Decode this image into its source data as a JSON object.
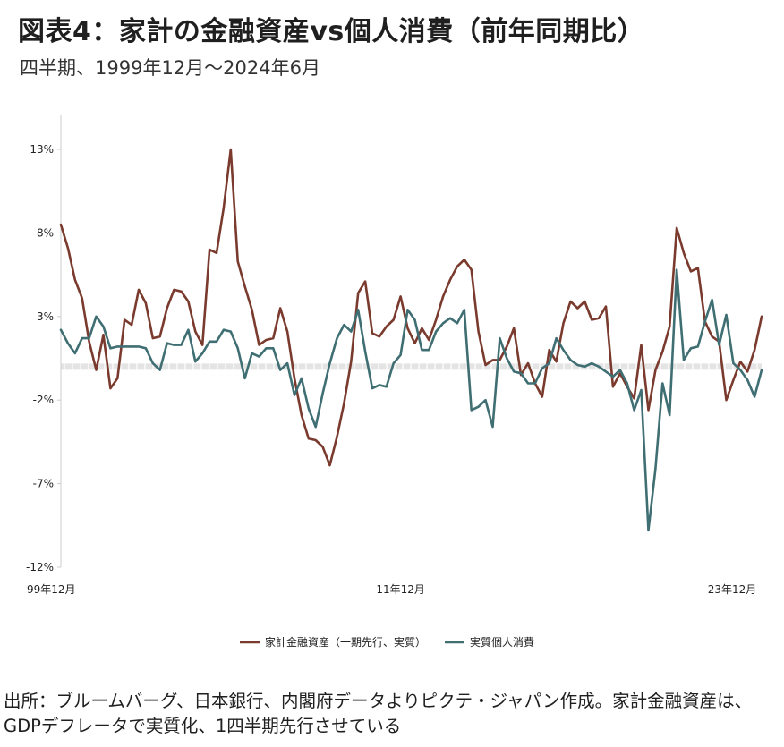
{
  "title": "図表4：家計の金融資産vs個人消費（前年同期比）",
  "subtitle": "四半期、1999年12月～2024年6月",
  "source_note": "出所：ブルームバーグ、日本銀行、内閣府データよりピクテ・ジャパン作成。家計金融資産は、GDPデフレータで実質化、1四半期先行させている",
  "colors": {
    "asset_series": "#7a3b2e",
    "consumption_series": "#3f6e73",
    "axis": "#cccccc",
    "zero_band": "#e4e4e4"
  },
  "chart_data": {
    "type": "line",
    "ylim": [
      -12,
      13
    ],
    "y_ticks": [
      13,
      8,
      3,
      -2,
      -7,
      -12
    ],
    "y_tick_labels": [
      "13%",
      "8%",
      "3%",
      "-2%",
      "-7%",
      "-12%"
    ],
    "x_tick_labels": [
      {
        "label": "99年12月",
        "index": 0
      },
      {
        "label": "11年12月",
        "index": 48
      },
      {
        "label": "23年12月",
        "index": 96
      }
    ],
    "legend_position": "bottom",
    "series": [
      {
        "name": "家計金融資産（一期先行、実質）",
        "color": "#7a3b2e",
        "values": [
          8.5,
          7.1,
          5.2,
          4.1,
          1.5,
          -0.2,
          1.9,
          -1.3,
          -0.7,
          2.8,
          2.5,
          4.6,
          3.8,
          1.7,
          1.8,
          3.5,
          4.6,
          4.5,
          3.9,
          2.1,
          1.3,
          7.0,
          6.8,
          9.5,
          13.0,
          6.3,
          4.8,
          3.4,
          1.3,
          1.6,
          1.7,
          3.5,
          2.1,
          -0.7,
          -2.9,
          -4.3,
          -4.4,
          -4.8,
          -5.9,
          -4.2,
          -2.2,
          0.3,
          4.4,
          5.1,
          2.0,
          1.8,
          2.4,
          2.8,
          4.2,
          2.3,
          1.4,
          2.3,
          1.6,
          2.8,
          4.2,
          5.2,
          6.0,
          6.4,
          5.8,
          2.1,
          0.1,
          0.4,
          0.4,
          1.2,
          2.3,
          -0.5,
          0.2,
          -1.0,
          -1.8,
          1.0,
          0.3,
          2.6,
          3.9,
          3.5,
          3.9,
          2.8,
          2.9,
          3.6,
          -1.2,
          -0.4,
          -1.2,
          -1.9,
          1.3,
          -2.6,
          -0.2,
          0.9,
          2.4,
          8.3,
          6.8,
          5.7,
          5.9,
          2.7,
          1.8,
          1.5,
          -2.0,
          -0.8,
          0.3,
          -0.3,
          1.0,
          3.0
        ],
        "x": [
          0,
          1,
          2,
          3,
          4,
          5,
          6,
          7,
          8,
          9,
          10,
          11,
          12,
          13,
          14,
          15,
          16,
          17,
          18,
          19,
          20,
          21,
          22,
          23,
          24,
          25,
          26,
          27,
          28,
          29,
          30,
          31,
          32,
          33,
          34,
          35,
          36,
          37,
          38,
          39,
          40,
          41,
          42,
          43,
          44,
          45,
          46,
          47,
          48,
          49,
          50,
          51,
          52,
          53,
          54,
          55,
          56,
          57,
          58,
          59,
          60,
          61,
          62,
          63,
          64,
          65,
          66,
          67,
          68,
          69,
          70,
          71,
          72,
          73,
          74,
          75,
          76,
          77,
          78,
          79,
          80,
          81,
          82,
          83,
          84,
          85,
          86,
          87,
          88,
          89,
          90,
          91,
          92,
          93,
          94,
          95,
          96,
          97,
          98,
          99
        ]
      },
      {
        "name": "実質個人消費",
        "color": "#3f6e73",
        "values": [
          2.2,
          1.4,
          0.8,
          1.7,
          1.7,
          3.0,
          2.4,
          1.1,
          1.2,
          1.2,
          1.2,
          1.2,
          1.1,
          0.2,
          -0.2,
          1.4,
          1.3,
          1.3,
          2.2,
          0.3,
          0.8,
          1.5,
          1.5,
          2.2,
          2.1,
          1.1,
          -0.7,
          0.8,
          0.6,
          1.1,
          1.1,
          -0.2,
          0.2,
          -1.7,
          -0.7,
          -2.5,
          -3.6,
          -1.6,
          0.2,
          1.7,
          2.5,
          2.1,
          3.4,
          0.9,
          -1.3,
          -1.1,
          -1.2,
          0.2,
          0.7,
          3.4,
          2.8,
          1.0,
          1.0,
          2.1,
          2.6,
          2.9,
          2.6,
          3.4,
          -2.6,
          -2.4,
          -2.0,
          -3.6,
          1.7,
          0.5,
          -0.3,
          -0.4,
          -1.0,
          -1.0,
          -0.1,
          0.2,
          1.7,
          1.0,
          0.4,
          0.1,
          0.0,
          0.2,
          0.0,
          -0.3,
          -0.6,
          -0.2,
          -1.0,
          -2.6,
          -1.4,
          -9.8,
          -6.1,
          -1.0,
          -2.9,
          5.8,
          0.4,
          1.1,
          1.2,
          2.7,
          4.0,
          1.3,
          3.1,
          0.2,
          -0.2,
          -0.8,
          -1.8,
          -0.2
        ],
        "x": [
          0,
          1,
          2,
          3,
          4,
          5,
          6,
          7,
          8,
          9,
          10,
          11,
          12,
          13,
          14,
          15,
          16,
          17,
          18,
          19,
          20,
          21,
          22,
          23,
          24,
          25,
          26,
          27,
          28,
          29,
          30,
          31,
          32,
          33,
          34,
          35,
          36,
          37,
          38,
          39,
          40,
          41,
          42,
          43,
          44,
          45,
          46,
          47,
          48,
          49,
          50,
          51,
          52,
          53,
          54,
          55,
          56,
          57,
          58,
          59,
          60,
          61,
          62,
          63,
          64,
          65,
          66,
          67,
          68,
          69,
          70,
          71,
          72,
          73,
          74,
          75,
          76,
          77,
          78,
          79,
          80,
          81,
          82,
          83,
          84,
          85,
          86,
          87,
          88,
          89,
          90,
          91,
          92,
          93,
          94,
          95,
          96,
          97,
          98,
          99
        ]
      }
    ]
  }
}
